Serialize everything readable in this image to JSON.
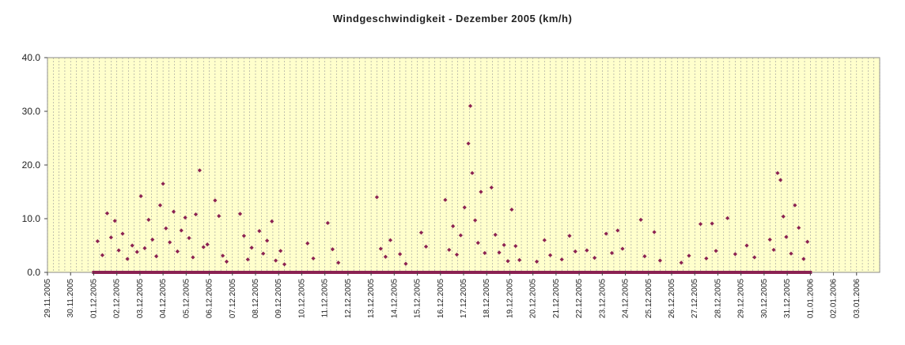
{
  "chart_data": {
    "type": "scatter",
    "title": "Windgeschwindigkeit - Dezember 2005 (km/h)",
    "xlabel": "",
    "ylabel": "",
    "ylim": [
      0,
      40
    ],
    "yticks": [
      "0.0",
      "10.0",
      "20.0",
      "30.0",
      "40.0"
    ],
    "xticks": [
      "29.11.2005",
      "30.11.2005",
      "01.12.2005",
      "02.12.2005",
      "03.12.2005",
      "04.12.2005",
      "05.12.2005",
      "06.12.2005",
      "07.12.2005",
      "08.12.2005",
      "09.12.2005",
      "10.12.2005",
      "11.12.2005",
      "12.12.2005",
      "13.12.2005",
      "14.12.2005",
      "15.12.2005",
      "16.12.2005",
      "17.12.2005",
      "18.12.2005",
      "19.12.2005",
      "20.12.2005",
      "21.12.2005",
      "22.12.2005",
      "23.12.2005",
      "24.12.2005",
      "25.12.2005",
      "26.12.2005",
      "27.12.2005",
      "28.12.2005",
      "29.12.2005",
      "30.12.2005",
      "31.12.2005",
      "01.01.2006",
      "02.01.2006",
      "03.01.2006"
    ],
    "grid": true,
    "plot_background": "#ffffcc",
    "marker_color": "#8b2252",
    "series": [
      {
        "points": [
          [
            "01.12.2005 04:00",
            5.8
          ],
          [
            "01.12.2005 09:00",
            3.2
          ],
          [
            "01.12.2005 14:00",
            11.0
          ],
          [
            "01.12.2005 18:00",
            6.5
          ],
          [
            "01.12.2005 22:00",
            9.6
          ],
          [
            "02.12.2005 02:00",
            4.1
          ],
          [
            "02.12.2005 06:00",
            7.2
          ],
          [
            "02.12.2005 11:00",
            2.5
          ],
          [
            "02.12.2005 16:00",
            5.0
          ],
          [
            "02.12.2005 21:00",
            3.8
          ],
          [
            "03.12.2005 01:00",
            14.2
          ],
          [
            "03.12.2005 05:00",
            4.5
          ],
          [
            "03.12.2005 09:00",
            9.8
          ],
          [
            "03.12.2005 13:00",
            6.1
          ],
          [
            "03.12.2005 17:00",
            3.0
          ],
          [
            "03.12.2005 21:00",
            12.5
          ],
          [
            "04.12.2005 00:00",
            16.5
          ],
          [
            "04.12.2005 03:00",
            8.2
          ],
          [
            "04.12.2005 07:00",
            5.6
          ],
          [
            "04.12.2005 11:00",
            11.3
          ],
          [
            "04.12.2005 15:00",
            3.9
          ],
          [
            "04.12.2005 19:00",
            7.8
          ],
          [
            "04.12.2005 23:00",
            10.2
          ],
          [
            "05.12.2005 03:00",
            6.4
          ],
          [
            "05.12.2005 07:00",
            2.8
          ],
          [
            "05.12.2005 10:00",
            10.8
          ],
          [
            "05.12.2005 14:00",
            19.0
          ],
          [
            "05.12.2005 18:00",
            4.7
          ],
          [
            "05.12.2005 22:00",
            5.2
          ],
          [
            "06.12.2005 06:00",
            13.4
          ],
          [
            "06.12.2005 10:00",
            10.5
          ],
          [
            "06.12.2005 14:00",
            3.1
          ],
          [
            "06.12.2005 18:00",
            2.0
          ],
          [
            "07.12.2005 08:00",
            10.9
          ],
          [
            "07.12.2005 12:00",
            6.8
          ],
          [
            "07.12.2005 16:00",
            2.4
          ],
          [
            "07.12.2005 20:00",
            4.6
          ],
          [
            "08.12.2005 04:00",
            7.7
          ],
          [
            "08.12.2005 08:00",
            3.5
          ],
          [
            "08.12.2005 12:00",
            5.9
          ],
          [
            "08.12.2005 17:00",
            9.5
          ],
          [
            "08.12.2005 21:00",
            2.2
          ],
          [
            "09.12.2005 02:00",
            4.0
          ],
          [
            "09.12.2005 06:00",
            1.5
          ],
          [
            "10.12.2005 06:00",
            5.4
          ],
          [
            "10.12.2005 12:00",
            2.6
          ],
          [
            "11.12.2005 03:00",
            9.2
          ],
          [
            "11.12.2005 08:00",
            4.3
          ],
          [
            "11.12.2005 14:00",
            1.8
          ],
          [
            "13.12.2005 06:00",
            14.0
          ],
          [
            "13.12.2005 10:00",
            4.4
          ],
          [
            "13.12.2005 15:00",
            2.9
          ],
          [
            "13.12.2005 20:00",
            6.0
          ],
          [
            "14.12.2005 06:00",
            3.4
          ],
          [
            "14.12.2005 12:00",
            1.6
          ],
          [
            "15.12.2005 04:00",
            7.4
          ],
          [
            "15.12.2005 09:00",
            4.8
          ],
          [
            "16.12.2005 05:00",
            13.5
          ],
          [
            "16.12.2005 09:00",
            4.2
          ],
          [
            "16.12.2005 13:00",
            8.6
          ],
          [
            "16.12.2005 17:00",
            3.3
          ],
          [
            "16.12.2005 21:00",
            6.9
          ],
          [
            "17.12.2005 01:00",
            12.1
          ],
          [
            "17.12.2005 05:00",
            24.0
          ],
          [
            "17.12.2005 07:00",
            31.0
          ],
          [
            "17.12.2005 09:00",
            18.5
          ],
          [
            "17.12.2005 12:00",
            9.7
          ],
          [
            "17.12.2005 15:00",
            5.5
          ],
          [
            "17.12.2005 18:00",
            15.0
          ],
          [
            "17.12.2005 22:00",
            3.6
          ],
          [
            "18.12.2005 05:00",
            15.8
          ],
          [
            "18.12.2005 09:00",
            7.0
          ],
          [
            "18.12.2005 13:00",
            3.7
          ],
          [
            "18.12.2005 18:00",
            5.1
          ],
          [
            "18.12.2005 22:00",
            2.1
          ],
          [
            "19.12.2005 02:00",
            11.7
          ],
          [
            "19.12.2005 06:00",
            4.9
          ],
          [
            "19.12.2005 10:00",
            2.3
          ],
          [
            "20.12.2005 04:00",
            2.0
          ],
          [
            "20.12.2005 12:00",
            6.0
          ],
          [
            "20.12.2005 18:00",
            3.2
          ],
          [
            "21.12.2005 06:00",
            2.4
          ],
          [
            "21.12.2005 14:00",
            6.8
          ],
          [
            "21.12.2005 20:00",
            3.9
          ],
          [
            "22.12.2005 08:00",
            4.1
          ],
          [
            "22.12.2005 16:00",
            2.7
          ],
          [
            "23.12.2005 04:00",
            7.2
          ],
          [
            "23.12.2005 10:00",
            3.6
          ],
          [
            "23.12.2005 16:00",
            7.8
          ],
          [
            "23.12.2005 21:00",
            4.4
          ],
          [
            "24.12.2005 16:00",
            9.8
          ],
          [
            "24.12.2005 20:00",
            3.0
          ],
          [
            "25.12.2005 06:00",
            7.5
          ],
          [
            "25.12.2005 12:00",
            2.2
          ],
          [
            "26.12.2005 10:00",
            1.8
          ],
          [
            "26.12.2005 18:00",
            3.1
          ],
          [
            "27.12.2005 06:00",
            9.0
          ],
          [
            "27.12.2005 12:00",
            2.6
          ],
          [
            "27.12.2005 18:00",
            9.1
          ],
          [
            "27.12.2005 22:00",
            4.0
          ],
          [
            "28.12.2005 10:00",
            10.1
          ],
          [
            "28.12.2005 18:00",
            3.4
          ],
          [
            "29.12.2005 06:00",
            5.0
          ],
          [
            "29.12.2005 14:00",
            2.8
          ],
          [
            "30.12.2005 06:00",
            6.1
          ],
          [
            "30.12.2005 10:00",
            4.2
          ],
          [
            "30.12.2005 14:00",
            18.5
          ],
          [
            "30.12.2005 17:00",
            17.2
          ],
          [
            "30.12.2005 20:00",
            10.4
          ],
          [
            "30.12.2005 23:00",
            6.6
          ],
          [
            "31.12.2005 04:00",
            3.5
          ],
          [
            "31.12.2005 08:00",
            12.5
          ],
          [
            "31.12.2005 12:00",
            8.3
          ],
          [
            "31.12.2005 17:00",
            2.5
          ],
          [
            "31.12.2005 21:00",
            5.7
          ]
        ]
      }
    ]
  }
}
